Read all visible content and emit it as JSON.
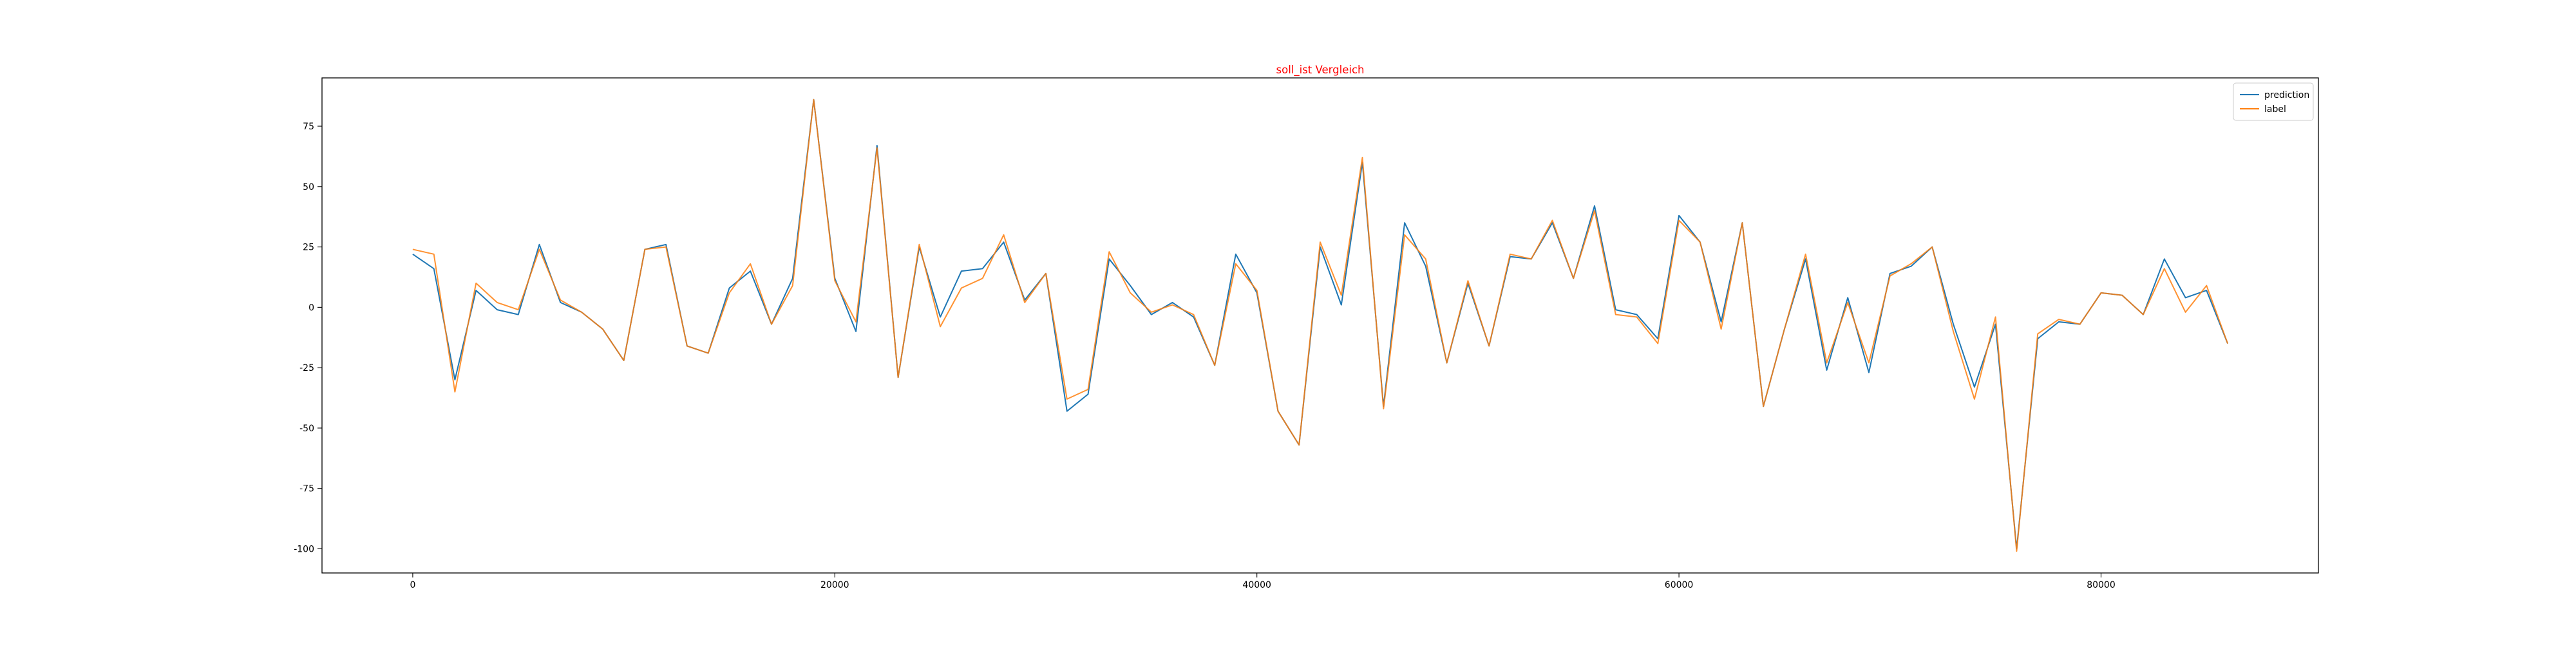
{
  "chart_data": {
    "type": "line",
    "title": "soll_ist Vergleich",
    "title_color": "#ff0000",
    "xlabel": "",
    "ylabel": "",
    "xlim": [
      -4300,
      90300
    ],
    "ylim": [
      -110,
      95
    ],
    "xticks": [
      0,
      20000,
      40000,
      60000,
      80000
    ],
    "yticks": [
      -100,
      -75,
      -50,
      -25,
      0,
      25,
      50,
      75
    ],
    "grid": false,
    "legend_position": "top-right",
    "x": [
      0,
      1000,
      2000,
      3000,
      4000,
      5000,
      6000,
      7000,
      8000,
      9000,
      10000,
      11000,
      12000,
      13000,
      14000,
      15000,
      16000,
      17000,
      18000,
      19000,
      20000,
      21000,
      22000,
      23000,
      24000,
      25000,
      26000,
      27000,
      28000,
      29000,
      30000,
      31000,
      32000,
      33000,
      34000,
      35000,
      36000,
      37000,
      38000,
      39000,
      40000,
      41000,
      42000,
      43000,
      44000,
      45000,
      46000,
      47000,
      48000,
      49000,
      50000,
      51000,
      52000,
      53000,
      54000,
      55000,
      56000,
      57000,
      58000,
      59000,
      60000,
      61000,
      62000,
      63000,
      64000,
      65000,
      66000,
      67000,
      68000,
      69000,
      70000,
      71000,
      72000,
      73000,
      74000,
      75000,
      76000,
      77000,
      78000,
      79000,
      80000,
      81000,
      82000,
      83000,
      84000,
      85000,
      86000
    ],
    "series": [
      {
        "name": "prediction",
        "color": "#1f77b4",
        "values": [
          22,
          16,
          -30,
          7,
          -1,
          -3,
          26,
          2,
          -2,
          -9,
          -22,
          24,
          26,
          -16,
          -19,
          8,
          15,
          -7,
          12,
          86,
          12,
          -10,
          67,
          -29,
          25,
          -4,
          15,
          16,
          27,
          3,
          14,
          -43,
          -36,
          20,
          9,
          -3,
          2,
          -4,
          -24,
          22,
          6,
          -43,
          -57,
          25,
          1,
          60,
          -41,
          35,
          17,
          -23,
          10,
          -16,
          21,
          20,
          35,
          12,
          42,
          -1,
          -3,
          -13,
          38,
          27,
          -6,
          35,
          -41,
          -9,
          20,
          -26,
          4,
          -27,
          14,
          17,
          25,
          -7,
          -33,
          -7,
          -100,
          -13,
          -6,
          -7,
          6,
          5,
          -3,
          20,
          4,
          7,
          -15
        ]
      },
      {
        "name": "label",
        "color": "#ff7f0e",
        "values": [
          24,
          22,
          -35,
          10,
          2,
          -1,
          24,
          3,
          -2,
          -9,
          -22,
          24,
          25,
          -16,
          -19,
          6,
          18,
          -7,
          9,
          86,
          11,
          -6,
          66,
          -29,
          26,
          -8,
          8,
          12,
          30,
          2,
          14,
          -38,
          -34,
          23,
          6,
          -2,
          1,
          -3,
          -24,
          18,
          7,
          -43,
          -57,
          27,
          5,
          62,
          -42,
          30,
          20,
          -23,
          11,
          -16,
          22,
          20,
          36,
          12,
          40,
          -3,
          -4,
          -15,
          36,
          27,
          -9,
          35,
          -41,
          -9,
          22,
          -23,
          2,
          -23,
          13,
          18,
          25,
          -10,
          -38,
          -4,
          -101,
          -11,
          -5,
          -7,
          6,
          5,
          -3,
          16,
          -2,
          9,
          -15
        ]
      }
    ]
  }
}
